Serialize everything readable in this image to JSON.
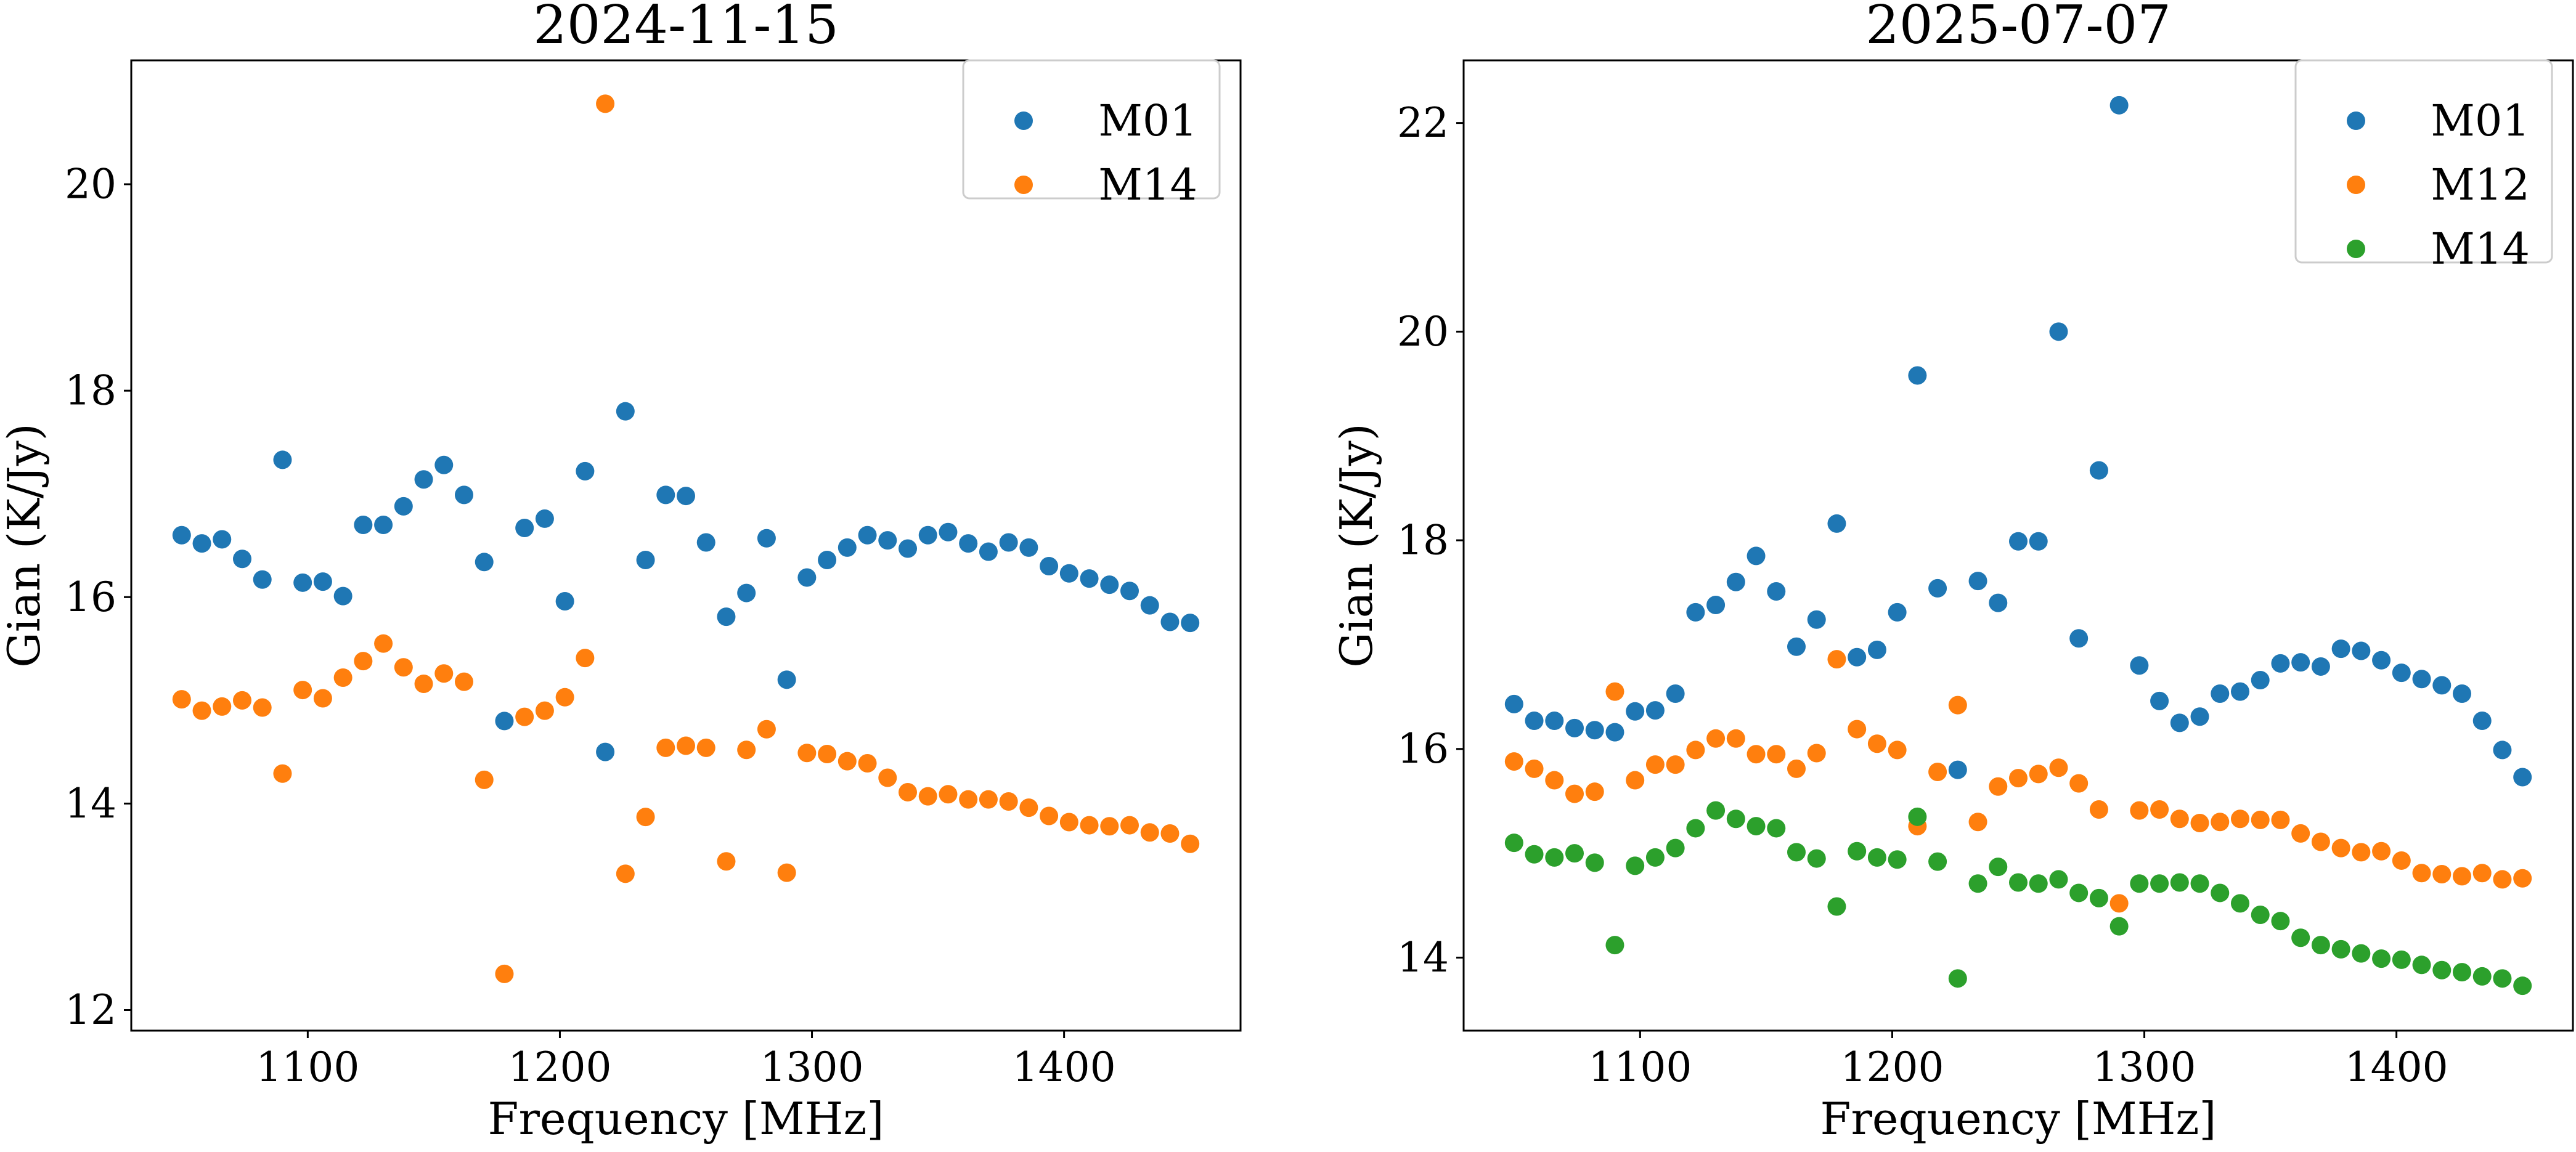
{
  "chart_data": [
    {
      "type": "scatter",
      "title": "2024-11-15",
      "xlabel": "Frequency [MHz]",
      "ylabel": "Gian (K/Jy)",
      "xlim": [
        1030,
        1470
      ],
      "ylim": [
        11.8,
        21.2
      ],
      "xticks": [
        1100,
        1200,
        1300,
        1400
      ],
      "yticks": [
        12,
        14,
        16,
        18,
        20
      ],
      "legend_position": "top-right",
      "series": [
        {
          "name": "M01",
          "color": "#1f77b4",
          "x": [
            1050,
            1058,
            1066,
            1074,
            1082,
            1090,
            1098,
            1106,
            1114,
            1122,
            1130,
            1138,
            1146,
            1154,
            1162,
            1170,
            1178,
            1186,
            1194,
            1202,
            1210,
            1218,
            1226,
            1234,
            1242,
            1250,
            1258,
            1266,
            1274,
            1282,
            1290,
            1298,
            1306,
            1314,
            1322,
            1330,
            1338,
            1346,
            1354,
            1362,
            1370,
            1378,
            1386,
            1394,
            1402,
            1410,
            1418,
            1426,
            1434,
            1442,
            1450
          ],
          "y": [
            16.6,
            16.52,
            16.56,
            16.37,
            16.17,
            17.33,
            16.14,
            16.15,
            16.01,
            16.7,
            16.7,
            16.88,
            17.14,
            17.28,
            16.99,
            16.34,
            14.8,
            16.67,
            16.76,
            15.96,
            17.22,
            14.5,
            17.8,
            16.36,
            16.99,
            16.98,
            16.53,
            15.81,
            16.04,
            16.57,
            15.2,
            16.19,
            16.36,
            16.48,
            16.6,
            16.55,
            16.47,
            16.6,
            16.63,
            16.52,
            16.44,
            16.53,
            16.48,
            16.3,
            16.23,
            16.18,
            16.12,
            16.06,
            15.92,
            15.76,
            15.75
          ]
        },
        {
          "name": "M14",
          "color": "#ff7f0e",
          "x": [
            1050,
            1058,
            1066,
            1074,
            1082,
            1090,
            1098,
            1106,
            1114,
            1122,
            1130,
            1138,
            1146,
            1154,
            1162,
            1170,
            1178,
            1186,
            1194,
            1202,
            1210,
            1218,
            1226,
            1234,
            1242,
            1250,
            1258,
            1266,
            1274,
            1282,
            1290,
            1298,
            1306,
            1314,
            1322,
            1330,
            1338,
            1346,
            1354,
            1362,
            1370,
            1378,
            1386,
            1394,
            1402,
            1410,
            1418,
            1426,
            1434,
            1442,
            1450
          ],
          "y": [
            15.01,
            14.9,
            14.94,
            15.0,
            14.93,
            14.29,
            15.1,
            15.02,
            15.22,
            15.38,
            15.55,
            15.32,
            15.16,
            15.26,
            15.18,
            14.23,
            12.35,
            14.84,
            14.9,
            15.03,
            15.41,
            20.78,
            13.32,
            13.87,
            14.54,
            14.56,
            14.54,
            13.44,
            14.52,
            14.72,
            13.33,
            14.49,
            14.48,
            14.41,
            14.39,
            14.25,
            14.11,
            14.07,
            14.09,
            14.04,
            14.04,
            14.02,
            13.96,
            13.88,
            13.82,
            13.79,
            13.78,
            13.79,
            13.72,
            13.71,
            13.61
          ]
        }
      ]
    },
    {
      "type": "scatter",
      "title": "2025-07-07",
      "xlabel": "Frequency [MHz]",
      "ylabel": "Gian (K/Jy)",
      "xlim": [
        1030,
        1470
      ],
      "ylim": [
        13.3,
        22.6
      ],
      "xticks": [
        1100,
        1200,
        1300,
        1400
      ],
      "yticks": [
        14,
        16,
        18,
        20,
        22
      ],
      "legend_position": "top-right",
      "series": [
        {
          "name": "M01",
          "color": "#1f77b4",
          "x": [
            1050,
            1058,
            1066,
            1074,
            1082,
            1090,
            1098,
            1106,
            1114,
            1122,
            1130,
            1138,
            1146,
            1154,
            1162,
            1170,
            1178,
            1186,
            1194,
            1202,
            1210,
            1218,
            1226,
            1234,
            1242,
            1250,
            1258,
            1266,
            1274,
            1282,
            1290,
            1298,
            1306,
            1314,
            1322,
            1330,
            1338,
            1346,
            1354,
            1362,
            1370,
            1378,
            1386,
            1394,
            1402,
            1410,
            1418,
            1426,
            1434,
            1442,
            1450
          ],
          "y": [
            16.43,
            16.27,
            16.27,
            16.2,
            16.18,
            16.16,
            16.36,
            16.37,
            16.53,
            17.31,
            17.38,
            17.6,
            17.85,
            17.51,
            16.98,
            17.24,
            18.16,
            16.88,
            16.95,
            17.31,
            19.58,
            17.54,
            15.8,
            17.61,
            17.4,
            17.99,
            17.99,
            20.0,
            17.06,
            18.67,
            22.17,
            16.8,
            16.46,
            16.25,
            16.31,
            16.53,
            16.55,
            16.66,
            16.82,
            16.83,
            16.79,
            16.96,
            16.94,
            16.85,
            16.73,
            16.67,
            16.61,
            16.53,
            16.27,
            15.99,
            15.73
          ]
        },
        {
          "name": "M12",
          "color": "#ff7f0e",
          "x": [
            1050,
            1058,
            1066,
            1074,
            1082,
            1090,
            1098,
            1106,
            1114,
            1122,
            1130,
            1138,
            1146,
            1154,
            1162,
            1170,
            1178,
            1186,
            1194,
            1202,
            1210,
            1218,
            1226,
            1234,
            1242,
            1250,
            1258,
            1266,
            1274,
            1282,
            1290,
            1298,
            1306,
            1314,
            1322,
            1330,
            1338,
            1346,
            1354,
            1362,
            1370,
            1378,
            1386,
            1394,
            1402,
            1410,
            1418,
            1426,
            1434,
            1442,
            1450
          ],
          "y": [
            15.88,
            15.81,
            15.7,
            15.57,
            15.59,
            16.55,
            15.7,
            15.85,
            15.85,
            15.99,
            16.1,
            16.1,
            15.95,
            15.95,
            15.81,
            15.96,
            16.86,
            16.19,
            16.05,
            15.99,
            15.26,
            15.78,
            16.42,
            15.3,
            15.64,
            15.72,
            15.76,
            15.82,
            15.67,
            15.42,
            14.52,
            15.41,
            15.42,
            15.33,
            15.29,
            15.3,
            15.33,
            15.32,
            15.32,
            15.19,
            15.11,
            15.05,
            15.01,
            15.02,
            14.93,
            14.81,
            14.8,
            14.78,
            14.81,
            14.75,
            14.76
          ]
        },
        {
          "name": "M14",
          "color": "#2ca02c",
          "x": [
            1050,
            1058,
            1066,
            1074,
            1082,
            1090,
            1098,
            1106,
            1114,
            1122,
            1130,
            1138,
            1146,
            1154,
            1162,
            1170,
            1178,
            1186,
            1194,
            1202,
            1210,
            1218,
            1226,
            1234,
            1242,
            1250,
            1258,
            1266,
            1274,
            1282,
            1290,
            1298,
            1306,
            1314,
            1322,
            1330,
            1338,
            1346,
            1354,
            1362,
            1370,
            1378,
            1386,
            1394,
            1402,
            1410,
            1418,
            1426,
            1434,
            1442,
            1450
          ],
          "y": [
            15.1,
            14.99,
            14.96,
            15.0,
            14.91,
            14.12,
            14.88,
            14.96,
            15.05,
            15.24,
            15.41,
            15.33,
            15.26,
            15.24,
            15.01,
            14.95,
            14.49,
            15.02,
            14.96,
            14.94,
            15.35,
            14.92,
            13.8,
            14.71,
            14.87,
            14.72,
            14.71,
            14.75,
            14.62,
            14.57,
            14.3,
            14.71,
            14.71,
            14.72,
            14.71,
            14.62,
            14.52,
            14.41,
            14.35,
            14.19,
            14.12,
            14.08,
            14.04,
            13.99,
            13.98,
            13.93,
            13.88,
            13.86,
            13.82,
            13.8,
            13.73
          ]
        }
      ]
    }
  ]
}
